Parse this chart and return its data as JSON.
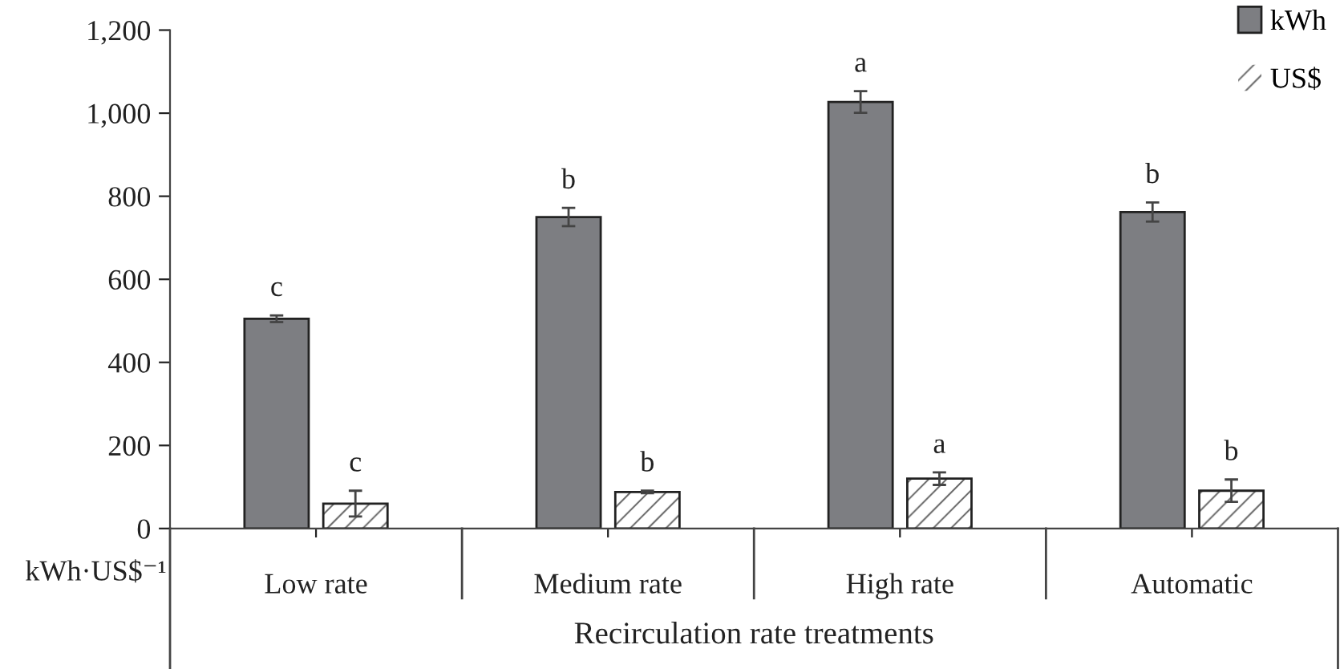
{
  "chart_data": {
    "type": "bar",
    "categories": [
      "Low rate",
      "Medium rate",
      "High rate",
      "Automatic"
    ],
    "series": [
      {
        "name": "kWh",
        "color": "#7d7e82",
        "values": [
          505,
          750,
          1027,
          762
        ],
        "errors": [
          8,
          22,
          26,
          23
        ]
      },
      {
        "name": "US$",
        "color": "#ffffff",
        "values": [
          60,
          88,
          120,
          91
        ],
        "errors": [
          31,
          3,
          15,
          27
        ]
      }
    ],
    "ylim": [
      0,
      1200
    ],
    "yticks": [
      0,
      {
        "value": 200,
        "label": "200"
      },
      {
        "value": 400,
        "label": "400"
      },
      {
        "value": 600,
        "label": "600"
      },
      {
        "value": 800,
        "label": "800"
      },
      {
        "value": 1000,
        "label": "1,000"
      },
      {
        "value": 1200,
        "label": "1,200"
      }
    ],
    "ylabel": "kWh·US$⁻¹",
    "xlabel": "Recirculation rate treatments",
    "annotations": [
      {
        "text": "c",
        "x": "Low rate",
        "y": 505
      },
      {
        "text": "c",
        "x": "Low rate",
        "y": 60
      },
      {
        "text": "b",
        "x": "Medium rate",
        "y": 750
      },
      {
        "text": "b",
        "x": "Medium rate",
        "y": 88
      },
      {
        "text": "a",
        "x": "High rate",
        "y": 1027
      },
      {
        "text": "a",
        "x": "High rate",
        "y": 120
      },
      {
        "text": "b",
        "x": "Automatic",
        "y": 762
      },
      {
        "text": "b",
        "x": "Automatic",
        "y": 91
      }
    ],
    "legend": "top right",
    "grid": false
  }
}
